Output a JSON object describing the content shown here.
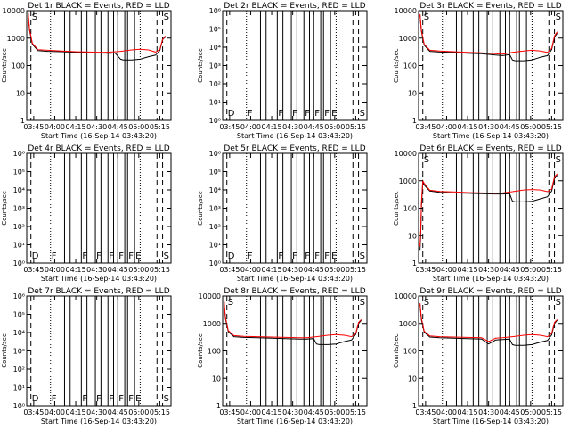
{
  "colors": {
    "events": "#000000",
    "lld": "#ff0000"
  },
  "chart_data": [
    {
      "type": "line",
      "title": "Det 1r BLACK = Events, RED = LLD",
      "xlabel": "Start Time (16-Sep-14 03:43:20)",
      "ylabel": "Counts/sec",
      "x_ticks": [
        "03:45",
        "04:00",
        "04:15",
        "04:30",
        "04:45",
        "05:00",
        "05:15"
      ],
      "y_ticks": [
        "1",
        "10",
        "100",
        "1000",
        "10000"
      ],
      "y_scale": "log",
      "ylim": [
        1,
        10000
      ],
      "xlim_minutes": [
        -5,
        98
      ],
      "markers": [
        {
          "x": -2,
          "label": "S"
        },
        {
          "x": 92,
          "label": "S"
        }
      ],
      "vlines_dashed": [
        -2,
        88,
        92
      ],
      "vlines_dotted": [
        12,
        76
      ],
      "vlines_solid": [
        22,
        26,
        34,
        38,
        44,
        48,
        53,
        57,
        60,
        65,
        67,
        72
      ],
      "series": [
        {
          "name": "Events",
          "color": "#000000",
          "x": [
            -4,
            -3,
            -1,
            3,
            10,
            20,
            30,
            40,
            55,
            58,
            62,
            64,
            70,
            76,
            82,
            87,
            90,
            92,
            94
          ],
          "y": [
            8000,
            2000,
            600,
            350,
            330,
            320,
            300,
            290,
            280,
            290,
            170,
            160,
            160,
            170,
            210,
            240,
            350,
            900,
            1100
          ]
        },
        {
          "name": "LLD",
          "color": "#ff0000",
          "x": [
            -4,
            -3,
            -1,
            3,
            10,
            20,
            30,
            40,
            50,
            55,
            62,
            70,
            76,
            82,
            87,
            90,
            92,
            94
          ],
          "y": [
            8500,
            2200,
            650,
            380,
            360,
            340,
            320,
            310,
            300,
            310,
            330,
            370,
            390,
            370,
            310,
            380,
            900,
            1200
          ]
        }
      ]
    },
    {
      "type": "line",
      "title": "Det 2r BLACK = Events, RED = LLD",
      "xlabel": "Start Time (16-Sep-14 03:43:20)",
      "ylabel": "Counts/sec",
      "x_ticks": [
        "03:45",
        "04:00",
        "04:15",
        "04:30",
        "04:45",
        "05:00",
        "05:15"
      ],
      "y_ticks": [
        "10⁰",
        "10¹",
        "10²",
        "10³",
        "10⁴",
        "10⁵",
        "10⁶"
      ],
      "y_scale": "log",
      "ylim": [
        1,
        1000000
      ],
      "xlim_minutes": [
        -5,
        98
      ],
      "markers": [
        {
          "x": -2,
          "label": "D"
        },
        {
          "x": 12,
          "label": "F"
        },
        {
          "x": 34,
          "label": "F"
        },
        {
          "x": 44,
          "label": "F"
        },
        {
          "x": 53,
          "label": "F"
        },
        {
          "x": 60,
          "label": "F"
        },
        {
          "x": 67,
          "label": "F"
        },
        {
          "x": 72,
          "label": "E"
        },
        {
          "x": 92,
          "label": "S"
        }
      ],
      "vlines_dashed": [
        -2,
        88,
        92
      ],
      "vlines_dotted": [
        12,
        76
      ],
      "vlines_solid": [
        22,
        26,
        34,
        38,
        44,
        48,
        53,
        57,
        60,
        65,
        67,
        72
      ],
      "series": []
    },
    {
      "type": "line",
      "title": "Det 3r BLACK = Events, RED = LLD",
      "xlabel": "Start Time (16-Sep-14 03:43:20)",
      "ylabel": "Counts/sec",
      "x_ticks": [
        "03:45",
        "04:00",
        "04:15",
        "04:30",
        "04:45",
        "05:00",
        "05:15"
      ],
      "y_ticks": [
        "1",
        "10",
        "100",
        "1000",
        "10000"
      ],
      "y_scale": "log",
      "ylim": [
        1,
        10000
      ],
      "xlim_minutes": [
        -5,
        98
      ],
      "markers": [
        {
          "x": -2,
          "label": "S"
        },
        {
          "x": 92,
          "label": "S"
        }
      ],
      "vlines_dashed": [
        -2,
        88,
        92
      ],
      "vlines_dotted": [
        12,
        76
      ],
      "vlines_solid": [
        22,
        26,
        34,
        38,
        44,
        48,
        53,
        57,
        60,
        65,
        67,
        72
      ],
      "series": [
        {
          "name": "Events",
          "color": "#000000",
          "x": [
            -4,
            -3,
            -1,
            3,
            10,
            20,
            30,
            40,
            50,
            55,
            60,
            62,
            64,
            70,
            76,
            82,
            87,
            90,
            92,
            94
          ],
          "y": [
            7000,
            1800,
            550,
            330,
            310,
            300,
            280,
            270,
            240,
            230,
            250,
            160,
            150,
            150,
            160,
            200,
            230,
            380,
            1100,
            1500
          ]
        },
        {
          "name": "LLD",
          "color": "#ff0000",
          "x": [
            -4,
            -3,
            -1,
            3,
            10,
            20,
            30,
            40,
            50,
            55,
            62,
            70,
            76,
            82,
            87,
            90,
            92,
            94
          ],
          "y": [
            7500,
            2000,
            600,
            360,
            340,
            320,
            300,
            290,
            270,
            260,
            300,
            340,
            360,
            340,
            300,
            420,
            1200,
            1700
          ]
        }
      ]
    },
    {
      "type": "line",
      "title": "Det 4r BLACK = Events, RED = LLD",
      "xlabel": "Start Time (16-Sep-14 03:43:20)",
      "ylabel": "Counts/sec",
      "x_ticks": [
        "03:45",
        "04:00",
        "04:15",
        "04:30",
        "04:45",
        "05:00",
        "05:15"
      ],
      "y_ticks": [
        "10⁰",
        "10¹",
        "10²",
        "10³",
        "10⁴",
        "10⁵",
        "10⁶"
      ],
      "y_scale": "log",
      "ylim": [
        1,
        1000000
      ],
      "xlim_minutes": [
        -5,
        98
      ],
      "markers": [
        {
          "x": -2,
          "label": "D"
        },
        {
          "x": 12,
          "label": "F"
        },
        {
          "x": 34,
          "label": "F"
        },
        {
          "x": 44,
          "label": "F"
        },
        {
          "x": 53,
          "label": "F"
        },
        {
          "x": 60,
          "label": "F"
        },
        {
          "x": 67,
          "label": "F"
        },
        {
          "x": 72,
          "label": "E"
        },
        {
          "x": 92,
          "label": "S"
        }
      ],
      "vlines_dashed": [
        -2,
        88,
        92
      ],
      "vlines_dotted": [
        12,
        76
      ],
      "vlines_solid": [
        22,
        26,
        34,
        38,
        44,
        48,
        53,
        57,
        60,
        65,
        67,
        72
      ],
      "series": []
    },
    {
      "type": "line",
      "title": "Det 5r BLACK = Events, RED = LLD",
      "xlabel": "Start Time (16-Sep-14 03:43:20)",
      "ylabel": "Counts/sec",
      "x_ticks": [
        "03:45",
        "04:00",
        "04:15",
        "04:30",
        "04:45",
        "05:00",
        "05:15"
      ],
      "y_ticks": [
        "10⁰",
        "10¹",
        "10²",
        "10³",
        "10⁴",
        "10⁵",
        "10⁶"
      ],
      "y_scale": "log",
      "ylim": [
        1,
        1000000
      ],
      "xlim_minutes": [
        -5,
        98
      ],
      "markers": [
        {
          "x": -2,
          "label": "D"
        },
        {
          "x": 12,
          "label": "F"
        },
        {
          "x": 34,
          "label": "F"
        },
        {
          "x": 44,
          "label": "F"
        },
        {
          "x": 53,
          "label": "F"
        },
        {
          "x": 60,
          "label": "F"
        },
        {
          "x": 67,
          "label": "F"
        },
        {
          "x": 72,
          "label": "E"
        },
        {
          "x": 92,
          "label": "S"
        }
      ],
      "vlines_dashed": [
        -2,
        88,
        92
      ],
      "vlines_dotted": [
        12,
        76
      ],
      "vlines_solid": [
        22,
        26,
        34,
        38,
        44,
        48,
        53,
        57,
        60,
        65,
        67,
        72
      ],
      "series": []
    },
    {
      "type": "line",
      "title": "Det 6r BLACK = Events, RED = LLD",
      "xlabel": "Start Time (16-Sep-14 03:43:20)",
      "ylabel": "Counts/sec",
      "x_ticks": [
        "03:45",
        "04:00",
        "04:15",
        "04:30",
        "04:45",
        "05:00",
        "05:15"
      ],
      "y_ticks": [
        "1",
        "10",
        "100",
        "1000",
        "10000"
      ],
      "y_scale": "log",
      "ylim": [
        1,
        10000
      ],
      "xlim_minutes": [
        -5,
        98
      ],
      "markers": [
        {
          "x": -2,
          "label": "S"
        },
        {
          "x": 92,
          "label": "S"
        }
      ],
      "vlines_dashed": [
        -2,
        88,
        92
      ],
      "vlines_dotted": [
        12,
        76
      ],
      "vlines_solid": [
        22,
        26,
        34,
        38,
        44,
        48,
        53,
        57,
        60,
        65,
        67,
        72
      ],
      "series": [
        {
          "name": "Events",
          "color": "#000000",
          "x": [
            -4,
            -3.5,
            -3,
            -2,
            -1,
            3,
            10,
            20,
            30,
            40,
            50,
            55,
            60,
            62,
            64,
            70,
            76,
            82,
            87,
            90,
            92,
            94
          ],
          "y": [
            3,
            10,
            100,
            900,
            700,
            420,
            380,
            360,
            350,
            340,
            330,
            330,
            340,
            180,
            170,
            170,
            180,
            220,
            260,
            420,
            1200,
            1600
          ]
        },
        {
          "name": "LLD",
          "color": "#ff0000",
          "x": [
            -4,
            -3.5,
            -3,
            -2,
            -1,
            3,
            10,
            20,
            30,
            40,
            50,
            55,
            62,
            70,
            76,
            82,
            87,
            90,
            92,
            94
          ],
          "y": [
            4,
            15,
            150,
            1000,
            800,
            450,
            410,
            390,
            370,
            360,
            350,
            360,
            400,
            460,
            480,
            460,
            400,
            500,
            1400,
            1800
          ]
        }
      ]
    },
    {
      "type": "line",
      "title": "Det 7r BLACK = Events, RED = LLD",
      "xlabel": "Start Time (16-Sep-14 03:43:20)",
      "ylabel": "Counts/sec",
      "x_ticks": [
        "03:45",
        "04:00",
        "04:15",
        "04:30",
        "04:45",
        "05:00",
        "05:15"
      ],
      "y_ticks": [
        "10⁰",
        "10¹",
        "10²",
        "10³",
        "10⁴",
        "10⁵",
        "10⁶"
      ],
      "y_scale": "log",
      "ylim": [
        1,
        1000000
      ],
      "xlim_minutes": [
        -5,
        98
      ],
      "markers": [
        {
          "x": -2,
          "label": "D"
        },
        {
          "x": 12,
          "label": "F"
        },
        {
          "x": 34,
          "label": "F"
        },
        {
          "x": 44,
          "label": "F"
        },
        {
          "x": 53,
          "label": "F"
        },
        {
          "x": 60,
          "label": "F"
        },
        {
          "x": 67,
          "label": "F"
        },
        {
          "x": 72,
          "label": "E"
        },
        {
          "x": 92,
          "label": "S"
        }
      ],
      "vlines_dashed": [
        -2,
        88,
        92
      ],
      "vlines_dotted": [
        12,
        76
      ],
      "vlines_solid": [
        22,
        26,
        34,
        38,
        44,
        48,
        53,
        57,
        60,
        65,
        67,
        72
      ],
      "series": []
    },
    {
      "type": "line",
      "title": "Det 8r BLACK = Events, RED = LLD",
      "xlabel": "Start Time (16-Sep-14 03:43:20)",
      "ylabel": "Counts/sec",
      "x_ticks": [
        "03:45",
        "04:00",
        "04:15",
        "04:30",
        "04:45",
        "05:00",
        "05:15"
      ],
      "y_ticks": [
        "1",
        "10",
        "100",
        "1000",
        "10000"
      ],
      "y_scale": "log",
      "ylim": [
        1,
        10000
      ],
      "xlim_minutes": [
        -5,
        98
      ],
      "markers": [
        {
          "x": -2,
          "label": "S"
        },
        {
          "x": 92,
          "label": "S"
        }
      ],
      "vlines_dashed": [
        -2,
        88,
        92
      ],
      "vlines_dotted": [
        12,
        76
      ],
      "vlines_solid": [
        22,
        26,
        34,
        38,
        44,
        48,
        53,
        57,
        60,
        65,
        67,
        72
      ],
      "series": [
        {
          "name": "Events",
          "color": "#000000",
          "x": [
            -4,
            -3,
            -1,
            3,
            10,
            20,
            30,
            40,
            50,
            55,
            60,
            62,
            64,
            70,
            76,
            82,
            87,
            90,
            92,
            94
          ],
          "y": [
            6000,
            1500,
            500,
            330,
            310,
            300,
            290,
            280,
            270,
            270,
            280,
            180,
            170,
            170,
            180,
            220,
            250,
            400,
            1000,
            1300
          ]
        },
        {
          "name": "LLD",
          "color": "#ff0000",
          "x": [
            -4,
            -3,
            -1,
            3,
            10,
            20,
            30,
            40,
            50,
            55,
            62,
            70,
            76,
            82,
            87,
            90,
            92,
            94
          ],
          "y": [
            6500,
            1700,
            550,
            360,
            340,
            330,
            320,
            310,
            300,
            300,
            330,
            370,
            390,
            370,
            330,
            430,
            1100,
            1400
          ]
        }
      ]
    },
    {
      "type": "line",
      "title": "Det 9r BLACK = Events, RED = LLD",
      "xlabel": "Start Time (16-Sep-14 03:43:20)",
      "ylabel": "Counts/sec",
      "x_ticks": [
        "03:45",
        "04:00",
        "04:15",
        "04:30",
        "04:45",
        "05:00",
        "05:15"
      ],
      "y_ticks": [
        "1",
        "10",
        "100",
        "1000",
        "10000"
      ],
      "y_scale": "log",
      "ylim": [
        1,
        10000
      ],
      "xlim_minutes": [
        -5,
        98
      ],
      "markers": [
        {
          "x": -2,
          "label": "S"
        },
        {
          "x": 92,
          "label": "S"
        }
      ],
      "vlines_dashed": [
        -2,
        88,
        92
      ],
      "vlines_dotted": [
        12,
        76
      ],
      "vlines_solid": [
        22,
        26,
        34,
        38,
        44,
        48,
        53,
        57,
        60,
        65,
        67,
        72
      ],
      "series": [
        {
          "name": "Events",
          "color": "#000000",
          "x": [
            -4,
            -3,
            -1,
            3,
            10,
            20,
            30,
            40,
            45,
            50,
            55,
            60,
            62,
            64,
            70,
            76,
            82,
            87,
            90,
            92,
            94
          ],
          "y": [
            5000,
            1400,
            480,
            320,
            300,
            290,
            280,
            270,
            180,
            250,
            260,
            270,
            170,
            160,
            160,
            170,
            210,
            240,
            380,
            1000,
            1300
          ]
        },
        {
          "name": "LLD",
          "color": "#ff0000",
          "x": [
            -4,
            -3,
            -1,
            3,
            10,
            20,
            30,
            40,
            45,
            50,
            55,
            62,
            70,
            76,
            82,
            87,
            90,
            92,
            94
          ],
          "y": [
            5500,
            1600,
            520,
            350,
            330,
            320,
            310,
            300,
            220,
            290,
            300,
            330,
            370,
            390,
            370,
            330,
            430,
            1100,
            1400
          ]
        }
      ]
    }
  ]
}
